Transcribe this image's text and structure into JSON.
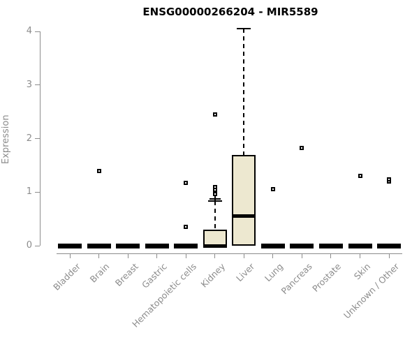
{
  "title": "ENSG00000266204 - MIR5589",
  "chart_data": {
    "type": "boxplot",
    "title": "ENSG00000266204 - MIR5589",
    "xlabel": "",
    "ylabel": "Expression",
    "ylim": [
      0,
      4
    ],
    "yticks": [
      0,
      1,
      2,
      3,
      4
    ],
    "grid": false,
    "legend": "none",
    "categories": [
      "Bladder",
      "Brain",
      "Breast",
      "Gastric",
      "Hematopoietic cells",
      "Kidney",
      "Liver",
      "Lung",
      "Pancreas",
      "Prostate",
      "Skin",
      "Unknown / Other"
    ],
    "boxes": [
      {
        "category": "Bladder",
        "q1": 0,
        "median": 0,
        "q3": 0,
        "whisker_low": 0,
        "whisker_high": 0,
        "mean": null,
        "outliers": []
      },
      {
        "category": "Brain",
        "q1": 0,
        "median": 0,
        "q3": 0,
        "whisker_low": 0,
        "whisker_high": 0,
        "mean": null,
        "outliers": [
          1.4
        ]
      },
      {
        "category": "Breast",
        "q1": 0,
        "median": 0,
        "q3": 0,
        "whisker_low": 0,
        "whisker_high": 0,
        "mean": null,
        "outliers": []
      },
      {
        "category": "Gastric",
        "q1": 0,
        "median": 0,
        "q3": 0,
        "whisker_low": 0,
        "whisker_high": 0,
        "mean": null,
        "outliers": []
      },
      {
        "category": "Hematopoietic cells",
        "q1": 0,
        "median": 0,
        "q3": 0,
        "whisker_low": 0,
        "whisker_high": 0,
        "mean": null,
        "outliers": [
          0.35,
          1.17
        ]
      },
      {
        "category": "Kidney",
        "q1": 0,
        "median": 0,
        "q3": 0.3,
        "whisker_low": 0,
        "whisker_high": 0.84,
        "mean": 0.87,
        "outliers": [
          0.97,
          1.04,
          1.1,
          2.45
        ]
      },
      {
        "category": "Liver",
        "q1": 0,
        "median": 0.55,
        "q3": 1.7,
        "whisker_low": 0,
        "whisker_high": 4.05,
        "mean": null,
        "outliers": []
      },
      {
        "category": "Lung",
        "q1": 0,
        "median": 0,
        "q3": 0,
        "whisker_low": 0,
        "whisker_high": 0,
        "mean": null,
        "outliers": [
          1.05
        ]
      },
      {
        "category": "Pancreas",
        "q1": 0,
        "median": 0,
        "q3": 0,
        "whisker_low": 0,
        "whisker_high": 0,
        "mean": null,
        "outliers": [
          1.83
        ]
      },
      {
        "category": "Prostate",
        "q1": 0,
        "median": 0,
        "q3": 0,
        "whisker_low": 0,
        "whisker_high": 0,
        "mean": null,
        "outliers": []
      },
      {
        "category": "Skin",
        "q1": 0,
        "median": 0,
        "q3": 0,
        "whisker_low": 0,
        "whisker_high": 0,
        "mean": null,
        "outliers": [
          1.3
        ]
      },
      {
        "category": "Unknown / Other",
        "q1": 0,
        "median": 0,
        "q3": 0,
        "whisker_low": 0,
        "whisker_high": 0,
        "mean": null,
        "outliers": [
          1.2,
          1.24
        ]
      }
    ],
    "colors": {
      "box_fill": "#ede8d0",
      "box_border": "#000000",
      "axis": "#8c8c8c",
      "label_text": "#8c8c8c",
      "title_text": "#000000"
    }
  }
}
